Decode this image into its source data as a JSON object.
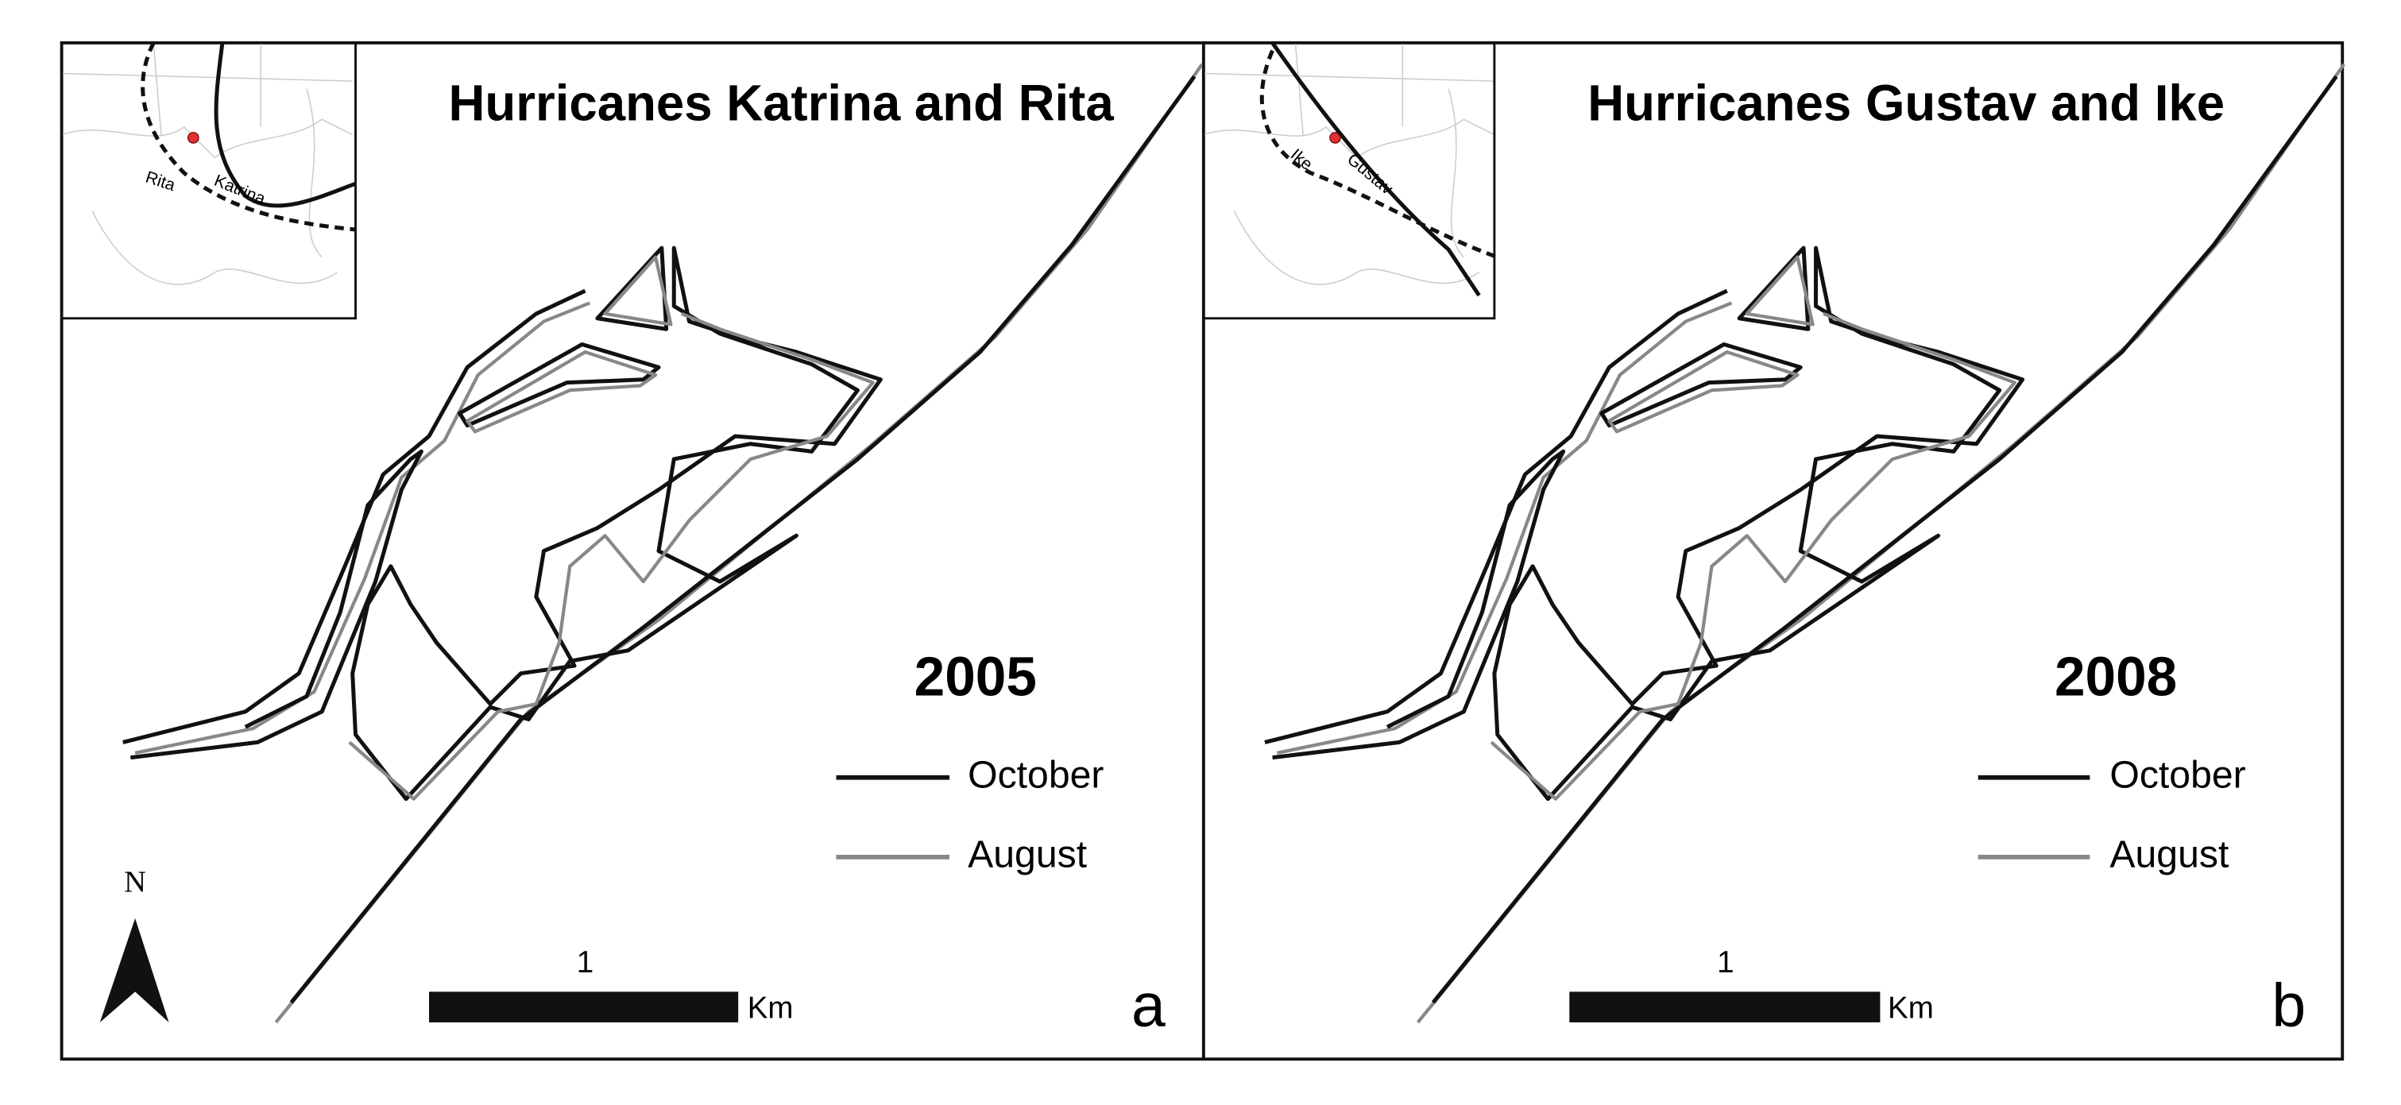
{
  "panels": [
    {
      "title": "Hurricanes Katrina and Rita",
      "year": "2005",
      "legend": [
        "October",
        "August"
      ],
      "scale": {
        "tick": "1",
        "unit": "Km"
      },
      "label": "a",
      "inset_labels": [
        "Katrina",
        "Rita"
      ]
    },
    {
      "title": "Hurricanes Gustav and Ike",
      "year": "2008",
      "legend": [
        "October",
        "August"
      ],
      "scale": {
        "tick": "1",
        "unit": "Km"
      },
      "label": "b",
      "inset_labels": [
        "Gustav",
        "Ike"
      ]
    }
  ],
  "north": "N"
}
